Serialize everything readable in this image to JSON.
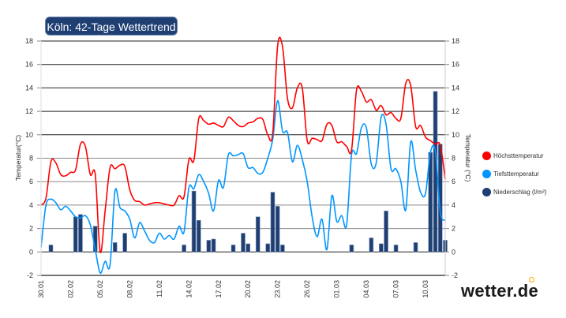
{
  "title": "Köln: 42-Tage Wettertrend",
  "logo": "wetter.de",
  "chart_data": {
    "type": "line+bar",
    "title": "Köln: 42-Tage Wettertrend",
    "ylabel_left": "Temperatur(°C)",
    "ylabel_right": "Temperatur (°C)",
    "ylim": [
      -2,
      18
    ],
    "yticks": [
      -2,
      0,
      2,
      4,
      6,
      8,
      10,
      12,
      14,
      16,
      18
    ],
    "grid": true,
    "legend_position": "right",
    "xtick_labels": [
      "30.01",
      "02.02",
      "05.02",
      "08.02",
      "11.02",
      "14.02",
      "17.02",
      "20.02",
      "23.02",
      "26.02",
      "01.03",
      "04.03",
      "07.03",
      "10.03"
    ],
    "x": [
      "30.01 00:00",
      "30.01 12:00",
      "31.01 00:00",
      "31.01 12:00",
      "01.02 00:00",
      "01.02 12:00",
      "02.02 00:00",
      "02.02 12:00",
      "03.02 00:00",
      "03.02 12:00",
      "04.02 00:00",
      "04.02 12:00",
      "05.02 00:00",
      "05.02 12:00",
      "06.02 00:00",
      "06.02 12:00",
      "07.02 00:00",
      "07.02 12:00",
      "08.02 00:00",
      "08.02 12:00",
      "09.02 00:00",
      "09.02 12:00",
      "10.02 00:00",
      "10.02 12:00",
      "11.02 00:00",
      "11.02 12:00",
      "12.02 00:00",
      "12.02 12:00",
      "13.02 00:00",
      "13.02 12:00",
      "14.02 00:00",
      "14.02 12:00",
      "15.02 00:00",
      "15.02 12:00",
      "16.02 00:00",
      "16.02 12:00",
      "17.02 00:00",
      "17.02 12:00",
      "18.02 00:00",
      "18.02 12:00",
      "19.02 00:00",
      "19.02 12:00",
      "20.02 00:00",
      "20.02 12:00",
      "21.02 00:00",
      "21.02 12:00",
      "22.02 00:00",
      "22.02 12:00",
      "23.02 00:00",
      "23.02 12:00",
      "24.02 00:00",
      "24.02 12:00",
      "25.02 00:00",
      "25.02 12:00",
      "26.02 00:00",
      "26.02 12:00",
      "27.02 00:00",
      "27.02 12:00",
      "28.02 00:00",
      "28.02 12:00",
      "01.03 00:00",
      "01.03 12:00",
      "02.03 00:00",
      "02.03 12:00",
      "03.03 00:00",
      "03.03 12:00",
      "04.03 00:00",
      "04.03 12:00",
      "05.03 00:00",
      "05.03 12:00",
      "06.03 00:00",
      "06.03 12:00",
      "07.03 00:00",
      "07.03 12:00",
      "08.03 00:00",
      "08.03 12:00",
      "09.03 00:00",
      "09.03 12:00",
      "10.03 00:00",
      "10.03 12:00",
      "11.03 00:00",
      "11.03 12:00",
      "12.03 00:00"
    ],
    "series": [
      {
        "name": "Höchsttemperatur",
        "type": "line",
        "color": "#ff0000",
        "values": [
          4.0,
          4.6,
          7.7,
          7.6,
          6.6,
          6.5,
          6.8,
          7.0,
          9.2,
          9.0,
          6.6,
          6.6,
          0.0,
          3.5,
          7.2,
          7.1,
          7.4,
          7.3,
          5.3,
          4.4,
          4.3,
          4.0,
          4.1,
          4.2,
          4.2,
          4.1,
          4.0,
          4.0,
          4.8,
          4.7,
          7.9,
          7.8,
          11.4,
          11.2,
          10.9,
          11.0,
          10.8,
          10.7,
          11.5,
          11.2,
          10.8,
          10.7,
          11.0,
          11.1,
          11.4,
          11.3,
          10.0,
          10.1,
          17.6,
          17.5,
          13.1,
          12.3,
          14.0,
          14.0,
          9.5,
          9.7,
          9.6,
          9.5,
          10.9,
          10.8,
          9.4,
          9.4,
          9.0,
          8.7,
          13.8,
          13.7,
          12.8,
          13.0,
          12.1,
          12.5,
          11.7,
          11.9,
          11.4,
          11.4,
          14.4,
          14.2,
          10.7,
          10.8,
          9.8,
          9.5,
          9.2,
          9.1,
          6.2
        ]
      },
      {
        "name": "Tiefsttemperatur",
        "type": "line",
        "color": "#0096ff",
        "values": [
          0.4,
          4.0,
          4.5,
          4.2,
          3.6,
          3.9,
          3.5,
          3.0,
          2.9,
          3.1,
          2.3,
          0.2,
          -1.8,
          -0.8,
          -1.1,
          5.2,
          3.8,
          3.5,
          2.8,
          1.2,
          2.5,
          1.8,
          1.0,
          0.8,
          1.6,
          1.1,
          1.4,
          1.1,
          2.2,
          1.7,
          5.5,
          5.4,
          6.6,
          6.0,
          5.0,
          3.5,
          6.1,
          5.5,
          8.3,
          8.2,
          8.3,
          8.4,
          7.2,
          7.2,
          6.7,
          6.8,
          8.0,
          9.6,
          12.9,
          10.3,
          10.2,
          7.7,
          9.1,
          7.9,
          6.0,
          3.0,
          1.3,
          2.8,
          0.2,
          4.8,
          2.6,
          3.1,
          2.3,
          8.3,
          8.4,
          10.6,
          10.6,
          7.5,
          7.6,
          11.5,
          10.9,
          7.1,
          7.1,
          6.0,
          3.6,
          9.4,
          7.0,
          5.1,
          5.0,
          8.5,
          8.6,
          3.4,
          2.7
        ]
      },
      {
        "name": "Niederschlag (l/m²)",
        "type": "bar",
        "color": "#1f3f73",
        "values": [
          0,
          0,
          0.6,
          0,
          0,
          0,
          0,
          3.0,
          3.2,
          0,
          0,
          2.2,
          0,
          0,
          0,
          0.8,
          0,
          1.6,
          0,
          0,
          0,
          0,
          0,
          0,
          0,
          0,
          0,
          0,
          0,
          0.6,
          0,
          5.2,
          2.7,
          0,
          1.0,
          1.1,
          0,
          0,
          0,
          0.6,
          0,
          1.6,
          0.7,
          0,
          3.0,
          0,
          0.7,
          5.1,
          3.9,
          0.6,
          0,
          0,
          0,
          0,
          0,
          0,
          0,
          0,
          0,
          0,
          0,
          0,
          0,
          0.6,
          0,
          0,
          0,
          1.2,
          0,
          0.7,
          3.5,
          0,
          0.6,
          0,
          0,
          0,
          0.8,
          0,
          0,
          8.5,
          13.7,
          9.2,
          1.0
        ]
      }
    ]
  }
}
